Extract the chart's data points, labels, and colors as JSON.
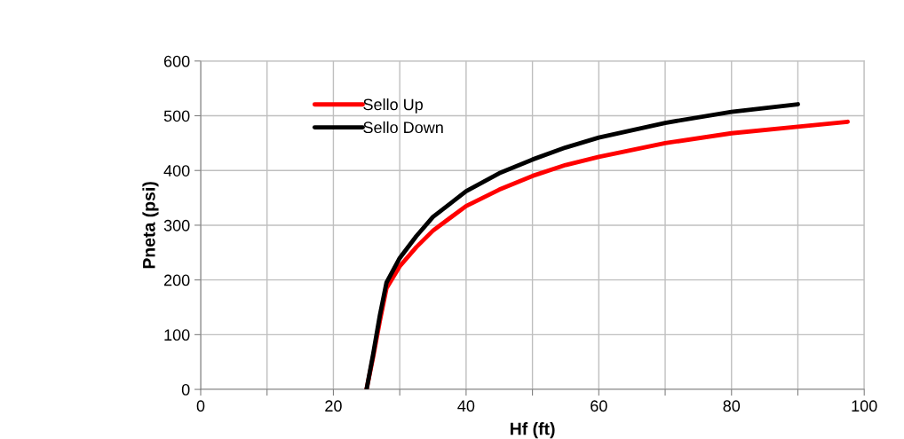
{
  "chart_data": {
    "type": "line",
    "xlabel": "Hf (ft)",
    "ylabel": "Pneta (psi)",
    "xlim": [
      0,
      100
    ],
    "xticks": [
      0,
      {
        "value": 10,
        "label": null
      },
      20,
      {
        "value": 30,
        "label": null
      },
      40,
      {
        "value": 50,
        "label": null
      },
      60,
      {
        "value": 70,
        "label": null
      },
      80,
      {
        "value": 90,
        "label": null
      },
      100
    ],
    "ylim": [
      0,
      600
    ],
    "yticks": [
      0,
      100,
      200,
      300,
      400,
      500,
      600
    ],
    "grid": true,
    "legend": "top left",
    "marker": "none",
    "line_style": "solid",
    "series": [
      {
        "name": "Sello Up",
        "color": "#ff0000",
        "x": [
          25,
          26,
          27,
          28,
          30,
          32.5,
          35,
          40,
          45,
          50,
          55,
          60,
          70,
          80,
          90,
          97.5
        ],
        "values": [
          0,
          60,
          125,
          185,
          225,
          260,
          290,
          335,
          365,
          390,
          410,
          425,
          450,
          468,
          480,
          489
        ]
      },
      {
        "name": "Sello Down",
        "color": "#000000",
        "x": [
          25,
          26,
          27,
          28,
          30,
          32.5,
          35,
          40,
          45,
          50,
          55,
          60,
          70,
          80,
          90
        ],
        "values": [
          0,
          65,
          135,
          195,
          240,
          280,
          315,
          362,
          395,
          420,
          442,
          460,
          487,
          507,
          521
        ]
      }
    ]
  }
}
